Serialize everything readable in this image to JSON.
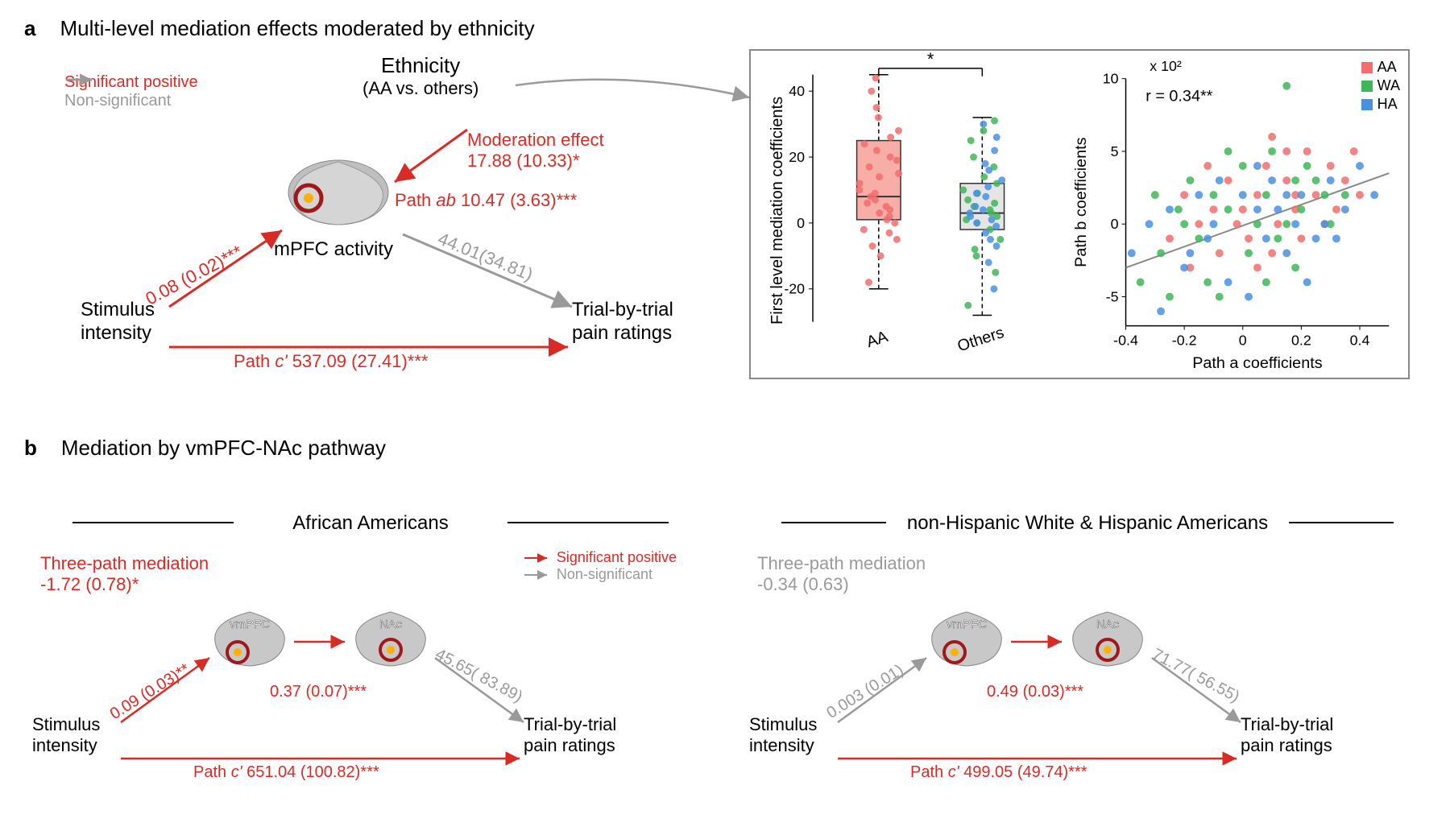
{
  "panel_a": {
    "label": "a",
    "title": "Multi-level mediation effects moderated by ethnicity",
    "legend": {
      "sig_positive": "Significant positive",
      "non_sig": "Non-significant",
      "sig_color": "#d92b26",
      "nonsig_color": "#9a9a9a"
    },
    "nodes": {
      "stimulus": "Stimulus\nintensity",
      "ethnicity_title": "Ethnicity",
      "ethnicity_sub": "(AA vs. others)",
      "mpfc": "mPFC activity",
      "outcome": "Trial-by-trial\npain ratings"
    },
    "paths": {
      "a_label": "0.08 (0.02)***",
      "ab_label": "Path ab 10.47 (3.63)***",
      "b_label": "44.01(34.81)",
      "c_label": "Path c' 537.09 (27.41)***",
      "moderation_label": "Moderation effect",
      "moderation_value": "17.88 (10.33)*"
    },
    "boxplot": {
      "ylabel": "First level mediation coefficients",
      "categories": [
        "AA",
        "Others"
      ],
      "sig_mark": "*",
      "ylim": [
        -30,
        45
      ],
      "yticks": [
        -20,
        0,
        20,
        40
      ],
      "box_aa": {
        "q1": 1,
        "median": 8,
        "q3": 25,
        "whisker_lo": -20,
        "whisker_hi": 45,
        "fill": "#f28b82"
      },
      "box_others": {
        "q1": -2,
        "median": 3,
        "q3": 12,
        "whisker_lo": -28,
        "whisker_hi": 32,
        "fill": "#dadada"
      },
      "points_aa": [
        -18,
        -10,
        -7,
        -5,
        -3,
        -2,
        0,
        1,
        2,
        3,
        4,
        5,
        6,
        7,
        8,
        9,
        10,
        12,
        14,
        15,
        17,
        19,
        20,
        22,
        24,
        26,
        28,
        32,
        35,
        40,
        44
      ],
      "points_others_wa": [
        -25,
        -15,
        -10,
        -8,
        -5,
        -2,
        0,
        1,
        2,
        3,
        4,
        5,
        6,
        7,
        9,
        10,
        12,
        14,
        17,
        20,
        25,
        28,
        31
      ],
      "points_others_ha": [
        -20,
        -12,
        -7,
        -5,
        -3,
        -1,
        0,
        1,
        2,
        3,
        4,
        5,
        8,
        9,
        11,
        13,
        16,
        18,
        22,
        26,
        30
      ],
      "colors": {
        "AA": "#f26d6d",
        "WA": "#3fb758",
        "HA": "#4a90e2"
      }
    },
    "scatter": {
      "ylabel": "Path b coefficients",
      "ylabel_scale": "x 10²",
      "xlabel": "Path a coefficients",
      "xlim": [
        -0.4,
        0.5
      ],
      "ylim": [
        -7,
        10
      ],
      "xticks": [
        -0.4,
        -0.2,
        0,
        0.2,
        0.4
      ],
      "yticks": [
        -5,
        0,
        5,
        10
      ],
      "r_text": "r = 0.34**",
      "fit_line": {
        "x1": -0.4,
        "y1": -3,
        "x2": 0.5,
        "y2": 3.5,
        "color": "#888888"
      },
      "points": {
        "AA": [
          [
            -0.25,
            -1
          ],
          [
            -0.2,
            2
          ],
          [
            -0.18,
            -3
          ],
          [
            -0.15,
            0
          ],
          [
            -0.1,
            1
          ],
          [
            -0.08,
            -2
          ],
          [
            -0.05,
            3
          ],
          [
            -0.02,
            0
          ],
          [
            0,
            1
          ],
          [
            0.02,
            -1
          ],
          [
            0.05,
            2
          ],
          [
            0.08,
            4
          ],
          [
            0.1,
            -2
          ],
          [
            0.12,
            0
          ],
          [
            0.15,
            3
          ],
          [
            0.18,
            1
          ],
          [
            0.2,
            -1
          ],
          [
            0.22,
            5
          ],
          [
            0.25,
            2
          ],
          [
            0.28,
            0
          ],
          [
            0.3,
            4
          ],
          [
            0.35,
            3
          ],
          [
            0.4,
            2
          ],
          [
            0.1,
            6
          ],
          [
            0.15,
            5
          ],
          [
            -0.12,
            4
          ],
          [
            0.05,
            -3
          ],
          [
            0.18,
            2
          ],
          [
            0.32,
            1
          ],
          [
            0.38,
            5
          ]
        ],
        "WA": [
          [
            -0.35,
            -4
          ],
          [
            -0.3,
            2
          ],
          [
            -0.28,
            -2
          ],
          [
            -0.25,
            -5
          ],
          [
            -0.2,
            0
          ],
          [
            -0.18,
            3
          ],
          [
            -0.15,
            -1
          ],
          [
            -0.1,
            2
          ],
          [
            -0.08,
            -5
          ],
          [
            -0.05,
            1
          ],
          [
            0,
            4
          ],
          [
            0.02,
            -2
          ],
          [
            0.05,
            0
          ],
          [
            0.08,
            2
          ],
          [
            0.1,
            5
          ],
          [
            0.15,
            9.5
          ],
          [
            0.18,
            -3
          ],
          [
            0.2,
            1
          ],
          [
            0.25,
            3
          ],
          [
            0.3,
            0
          ],
          [
            0.35,
            2
          ],
          [
            -0.12,
            -4
          ],
          [
            -0.05,
            5
          ],
          [
            0.12,
            -1
          ],
          [
            0.22,
            4
          ],
          [
            0.28,
            2
          ],
          [
            -0.22,
            1
          ],
          [
            0.08,
            -4
          ],
          [
            0.15,
            0
          ],
          [
            0.18,
            3
          ]
        ],
        "HA": [
          [
            -0.38,
            -2
          ],
          [
            -0.32,
            0
          ],
          [
            -0.28,
            -6
          ],
          [
            -0.25,
            1
          ],
          [
            -0.2,
            -3
          ],
          [
            -0.15,
            2
          ],
          [
            -0.12,
            -1
          ],
          [
            -0.1,
            0
          ],
          [
            -0.05,
            -4
          ],
          [
            0,
            2
          ],
          [
            0.02,
            -5
          ],
          [
            0.05,
            1
          ],
          [
            0.08,
            -1
          ],
          [
            0.1,
            3
          ],
          [
            0.15,
            -2
          ],
          [
            0.18,
            0
          ],
          [
            0.2,
            2
          ],
          [
            0.25,
            -1
          ],
          [
            0.3,
            3
          ],
          [
            0.35,
            1
          ],
          [
            0.4,
            4
          ],
          [
            0.45,
            2
          ],
          [
            -0.18,
            -2
          ],
          [
            -0.08,
            3
          ],
          [
            0.12,
            1
          ],
          [
            0.22,
            -4
          ],
          [
            0.28,
            0
          ],
          [
            0.05,
            4
          ],
          [
            0.15,
            2
          ],
          [
            0.32,
            -1
          ]
        ]
      },
      "legend_items": [
        "AA",
        "WA",
        "HA"
      ]
    }
  },
  "panel_b": {
    "label": "b",
    "title": "Mediation by vmPFC-NAc pathway",
    "left": {
      "title": "African Americans",
      "three_path_label": "Three-path mediation",
      "three_path_value": "-1.72 (0.78)*",
      "three_path_color": "#d92b26",
      "path_a": "0.09 (0.03)**",
      "path_a_color": "#d92b26",
      "path_mid": "0.37 (0.07)***",
      "path_mid_color": "#d92b26",
      "path_b": "45.65( 83.89)",
      "path_b_color": "#9a9a9a",
      "path_c": "Path c' 651.04 (100.82)***",
      "path_c_color": "#d92b26",
      "stimulus": "Stimulus\nintensity",
      "outcome": "Trial-by-trial\npain ratings",
      "brain1": "vmPFC",
      "brain2": "NAc",
      "legend_sig": "Significant positive",
      "legend_nonsig": "Non-significant"
    },
    "right": {
      "title": "non-Hispanic White & Hispanic Americans",
      "three_path_label": "Three-path mediation",
      "three_path_value": "-0.34 (0.63)",
      "three_path_color": "#9a9a9a",
      "path_a": "0.003 (0.01)",
      "path_a_color": "#9a9a9a",
      "path_mid": "0.49 (0.03)***",
      "path_mid_color": "#d92b26",
      "path_b": "71.77( 56.55)",
      "path_b_color": "#9a9a9a",
      "path_c": "Path c' 499.05 (49.74)***",
      "path_c_color": "#d92b26",
      "stimulus": "Stimulus\nintensity",
      "outcome": "Trial-by-trial\npain ratings",
      "brain1": "vmPFC",
      "brain2": "NAc"
    }
  }
}
